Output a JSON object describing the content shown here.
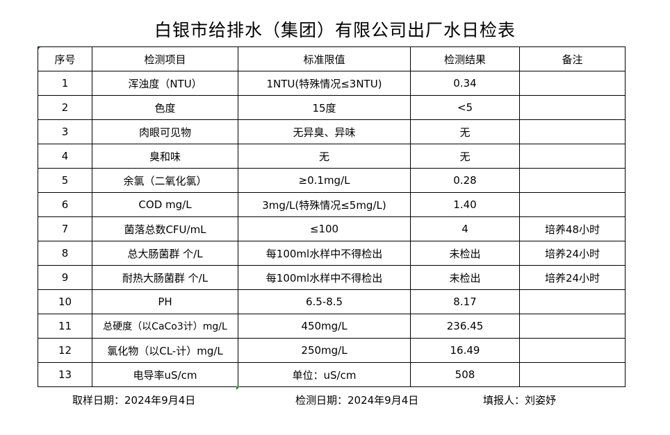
{
  "title": "白银市给排水（集团）有限公司出厂水日检表",
  "table": {
    "headers": [
      "序号",
      "检测项目",
      "标准限值",
      "检测结果",
      "备注"
    ],
    "rows": [
      [
        "1",
        "浑浊度（NTU）",
        "1NTU(特殊情况≤3NTU)",
        "0.34",
        ""
      ],
      [
        "2",
        "色度",
        "15度",
        "<5",
        ""
      ],
      [
        "3",
        "肉眼可见物",
        "无异臭、异味",
        "无",
        ""
      ],
      [
        "4",
        "臭和味",
        "无",
        "无",
        ""
      ],
      [
        "5",
        "余氯（二氧化氯）",
        "≥0.1mg/L",
        "0.28",
        ""
      ],
      [
        "6",
        "COD          mg/L",
        "3mg/L(特殊情况≤5mg/L)",
        "1.40",
        ""
      ],
      [
        "7",
        "菌落总数CFU/mL",
        "≤100",
        "4",
        "培养48小时"
      ],
      [
        "8",
        "总大肠菌群 个/L",
        "每100ml水样中不得检出",
        "未检出",
        "培养24小时"
      ],
      [
        "9",
        "耐热大肠菌群 个/L",
        "每100ml水样中不得检出",
        "未检出",
        "培养24小时"
      ],
      [
        "10",
        "PH",
        "6.5-8.5",
        "8.17",
        ""
      ],
      [
        "11",
        "总硬度（以CaCo3计）mg/L",
        "450mg/L",
        "236.45",
        ""
      ],
      [
        "12",
        "氯化物（以CL-计）mg/L",
        "250mg/L",
        "16.49",
        ""
      ],
      [
        "13",
        "电导率uS/cm",
        "单位：uS/cm",
        "508",
        ""
      ]
    ]
  },
  "footer": {
    "sampling_date": "取样日期：2024年9月4日",
    "test_date": "检测日期：2024年9月4日",
    "reporter": "填报人：刘姿妤"
  }
}
